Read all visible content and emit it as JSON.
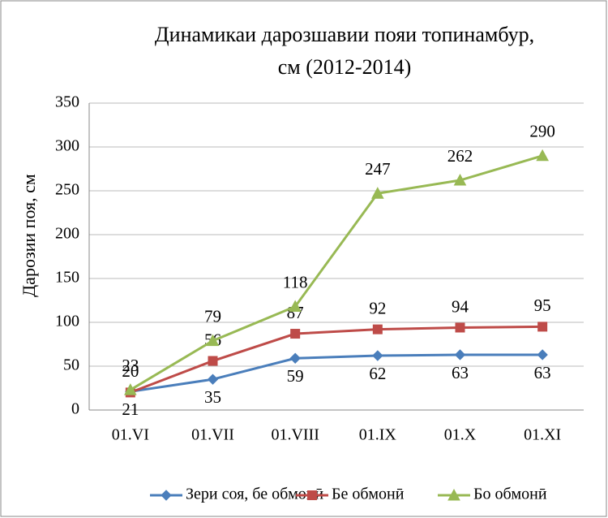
{
  "chart_data": {
    "type": "line",
    "title": [
      "Динамикаи дарозшавии пояи топинамбур,",
      "см   (2012-2014)"
    ],
    "y_label": "Дарозии поя, см",
    "categories": [
      "01.VI",
      "01.VII",
      "01.VIII",
      "01.IX",
      "01.X",
      "01.XI"
    ],
    "series": [
      {
        "name": "Зери соя, бе обмонӣ",
        "color": "#4a7ebb",
        "marker": "diamond",
        "values": [
          21,
          35,
          59,
          62,
          63,
          63
        ]
      },
      {
        "name": "Бе обмонӣ",
        "color": "#be4b48",
        "marker": "square",
        "values": [
          20,
          56,
          87,
          92,
          94,
          95
        ]
      },
      {
        "name": "Бо обмонӣ",
        "color": "#98b954",
        "marker": "triangle",
        "values": [
          23,
          79,
          118,
          247,
          262,
          290
        ]
      }
    ],
    "ylim": [
      0,
      350
    ],
    "yticks": [
      0,
      50,
      100,
      150,
      200,
      250,
      300,
      350
    ],
    "grid": true,
    "legend": "bottom"
  }
}
